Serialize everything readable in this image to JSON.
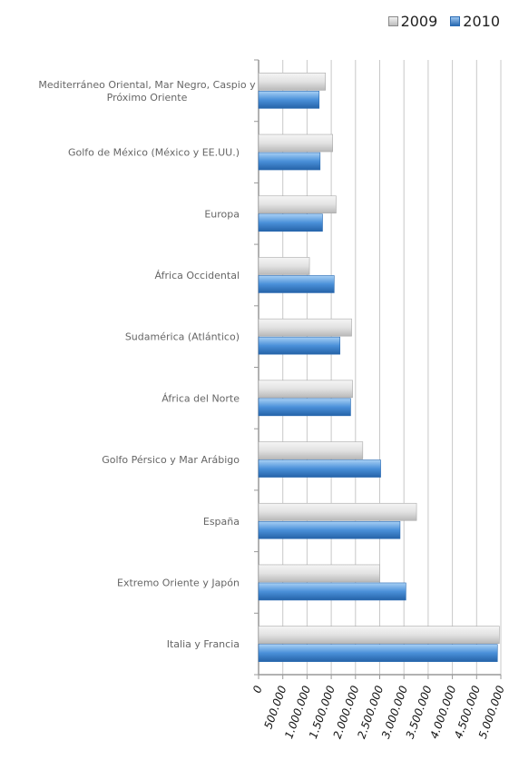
{
  "chart_data": {
    "type": "bar",
    "orientation": "horizontal",
    "categories": [
      [
        "Mediterráneo Oriental, Mar Negro, Caspio y",
        "Próximo Oriente"
      ],
      [
        "Golfo de México (México y EE.UU.)"
      ],
      [
        "Europa"
      ],
      [
        "África Occidental"
      ],
      [
        "Sudamérica (Atlántico)"
      ],
      [
        "África del Norte"
      ],
      [
        "Golfo Pérsico y Mar Arábigo"
      ],
      [
        "España"
      ],
      [
        "Extremo Oriente y Japón"
      ],
      [
        "Italia y Francia"
      ]
    ],
    "series": [
      {
        "name": "2009",
        "color": "#d4d4d4",
        "values": [
          1380000,
          1530000,
          1600000,
          1050000,
          1920000,
          1940000,
          2150000,
          3260000,
          2500000,
          4970000
        ]
      },
      {
        "name": "2010",
        "color": "#3c7fc4",
        "values": [
          1250000,
          1270000,
          1320000,
          1560000,
          1680000,
          1900000,
          2520000,
          2920000,
          3040000,
          4930000
        ]
      }
    ],
    "x_ticks": [
      "0",
      "500.000",
      "1.000.000",
      "1.500.000",
      "2.000.000",
      "2.500.000",
      "3.000.000",
      "3.500.000",
      "4.000.000",
      "4.500.000",
      "5.000.000"
    ],
    "xlim": [
      0,
      5000000
    ],
    "grid": true,
    "legend_position": "top-right"
  }
}
